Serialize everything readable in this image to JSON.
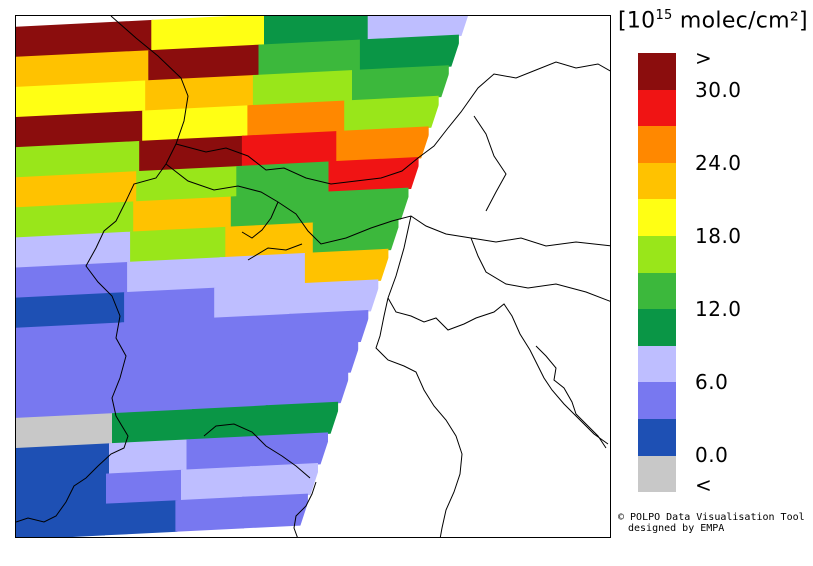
{
  "title_unit": {
    "prefix": "[10",
    "exponent": "15",
    "suffix": " molec/cm²]"
  },
  "legend": {
    "colors": [
      "#8b0d0d",
      "#f01414",
      "#ff8800",
      "#ffc200",
      "#ffff14",
      "#99e61a",
      "#3cb83c",
      "#0a9646",
      "#bebeff",
      "#7878f0",
      "#1e50b4",
      "#c8c8c8"
    ],
    "labels": [
      ">",
      "30.0",
      "24.0",
      "18.0",
      "12.0",
      "6.0",
      "0.0",
      "<"
    ]
  },
  "credit": {
    "line1": "© POLPO Data Visualisation Tool",
    "line2": "designed by EMPA"
  },
  "map": {
    "region": "Alps / Northern Italy / Adriatic",
    "data_field": "satellite swath column density, color coded per legend",
    "swath_rows_colors": [
      [
        "#8b0d0d",
        "#ffff14",
        "#0a9646",
        "#bebeff"
      ],
      [
        "#ffc200",
        "#8b0d0d",
        "#3cb83c",
        "#0a9646"
      ],
      [
        "#ffff14",
        "#ffc200",
        "#99e61a",
        "#3cb83c"
      ],
      [
        "#8b0d0d",
        "#ffff14",
        "#ff8800",
        "#99e61a"
      ],
      [
        "#99e61a",
        "#8b0d0d",
        "#f01414",
        "#ff8800"
      ],
      [
        "#ffc200",
        "#99e61a",
        "#3cb83c",
        "#f01414"
      ],
      [
        "#99e61a",
        "#ffc200",
        "#3cb83c",
        "#3cb83c"
      ],
      [
        "#bebeff",
        "#99e61a",
        "#ffc200",
        "#3cb83c"
      ],
      [
        "#7878f0",
        "#bebeff",
        "#bebeff",
        "#ffc200"
      ],
      [
        "#1e50b4",
        "#7878f0",
        "#bebeff",
        "#bebeff"
      ],
      [
        "#7878f0",
        "#7878f0",
        "#7878f0",
        "#7878f0"
      ],
      [
        "#7878f0",
        "#7878f0",
        "#7878f0",
        "#7878f0"
      ],
      [
        "#7878f0",
        "#7878f0",
        "#7878f0",
        "#7878f0"
      ],
      [
        "#c8c8c8",
        "#0a9646",
        "#0a9646",
        "#0a9646"
      ],
      [
        "#1e50b4",
        "#bebeff",
        "#7878f0",
        "#7878f0"
      ],
      [
        "#1e50b4",
        "#7878f0",
        "#bebeff",
        "#bebeff"
      ],
      [
        "#1e50b4",
        "#1e50b4",
        "#7878f0",
        "#7878f0"
      ]
    ]
  }
}
